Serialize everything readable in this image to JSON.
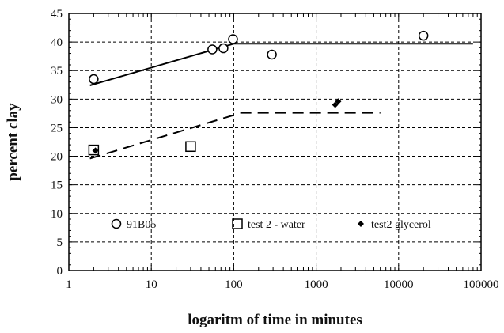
{
  "chart_data": {
    "type": "scatter",
    "title": "",
    "xlabel": "logaritm of time in minutes",
    "ylabel": "percent clay",
    "xscale": "log",
    "xlim": [
      1,
      100000
    ],
    "ylim": [
      0,
      45
    ],
    "grid": true,
    "legend_placement": "bottom-inside",
    "x_tick_labels": [
      "1",
      "10",
      "100",
      "1000",
      "10000",
      "100000"
    ],
    "y_tick_labels": [
      "0",
      "5",
      "10",
      "15",
      "20",
      "25",
      "30",
      "35",
      "40",
      "45"
    ],
    "series": [
      {
        "name": "91B05",
        "marker": "circle",
        "color": "#000000",
        "points": [
          [
            2,
            33.5
          ],
          [
            55,
            38.7
          ],
          [
            75,
            38.9
          ],
          [
            98,
            40.5
          ],
          [
            290,
            37.8
          ],
          [
            20000,
            41.1
          ]
        ]
      },
      {
        "name": "test 2 - water",
        "marker": "square",
        "color": "#000000",
        "points": [
          [
            2,
            21.1
          ],
          [
            30,
            21.7
          ]
        ]
      },
      {
        "name": "test2 glycerol",
        "marker": "diamond",
        "color": "#000000",
        "points": [
          [
            2.1,
            21.0
          ],
          [
            1700,
            29.0
          ],
          [
            1850,
            29.6
          ]
        ]
      }
    ],
    "lines": [
      {
        "style": "solid",
        "color": "#000000",
        "points": [
          [
            1.8,
            32.4
          ],
          [
            100,
            39.7
          ]
        ]
      },
      {
        "style": "solid",
        "color": "#000000",
        "points": [
          [
            100,
            39.7
          ],
          [
            80000,
            39.7
          ]
        ]
      },
      {
        "style": "dashed",
        "color": "#000000",
        "points": [
          [
            1.8,
            19.6
          ],
          [
            100,
            27.2
          ]
        ]
      },
      {
        "style": "dashed",
        "color": "#000000",
        "points": [
          [
            120,
            27.6
          ],
          [
            6000,
            27.6
          ]
        ]
      }
    ]
  }
}
